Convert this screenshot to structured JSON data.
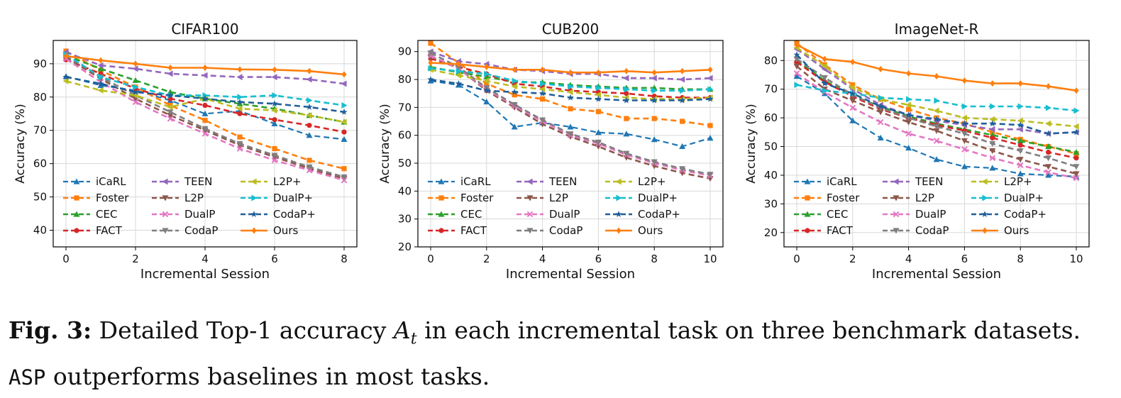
{
  "caption": {
    "label": "Fig. 3:",
    "pre": "Detailed Top-1 accuracy",
    "var": "A",
    "sub": "t",
    "mid": "in each incremental task on three benchmark datasets.",
    "method": "ASP",
    "post": "outperforms baselines in most tasks."
  },
  "series_style": [
    {
      "name": "iCaRL",
      "color": "#1f77b4",
      "marker": "tri-up",
      "dash": "8,5",
      "width": 2.2
    },
    {
      "name": "Foster",
      "color": "#ff7f0e",
      "marker": "square",
      "dash": "8,5",
      "width": 2.6
    },
    {
      "name": "CEC",
      "color": "#2ca02c",
      "marker": "tri-up",
      "dash": "8,5",
      "width": 2.6
    },
    {
      "name": "FACT",
      "color": "#d62728",
      "marker": "circle",
      "dash": "8,5",
      "width": 2.6
    },
    {
      "name": "TEEN",
      "color": "#9467bd",
      "marker": "tri-left",
      "dash": "8,5",
      "width": 2.6
    },
    {
      "name": "L2P",
      "color": "#8c564b",
      "marker": "tri-down",
      "dash": "8,5",
      "width": 2.6
    },
    {
      "name": "DualP",
      "color": "#e377c2",
      "marker": "x",
      "dash": "8,5",
      "width": 2.6
    },
    {
      "name": "CodaP",
      "color": "#7f7f7f",
      "marker": "tri-down",
      "dash": "8,5",
      "width": 2.6
    },
    {
      "name": "L2P+",
      "color": "#bcbd22",
      "marker": "tri-left",
      "dash": "8,5",
      "width": 2.6
    },
    {
      "name": "DualP+",
      "color": "#17becf",
      "marker": "tri-right",
      "dash": "8,5",
      "width": 2.6
    },
    {
      "name": "CodaP+",
      "color": "#1f5f99",
      "marker": "star",
      "dash": "8,5",
      "width": 2.6
    },
    {
      "name": "Ours",
      "color": "#ff7f0e",
      "marker": "diamond",
      "dash": "",
      "width": 2.6
    }
  ],
  "chart_data": [
    {
      "type": "line",
      "title": "CIFAR100",
      "xlabel": "Incremental Session",
      "ylabel": "Accuracy (%)",
      "xlim": [
        0,
        8
      ],
      "ylim": [
        35,
        97
      ],
      "xticks": [
        0,
        2,
        4,
        6,
        8
      ],
      "yticks": [
        40,
        50,
        60,
        70,
        80,
        90
      ],
      "grid": true,
      "legend": "lower-left",
      "x": [
        0,
        1,
        2,
        3,
        4,
        5,
        6,
        7,
        8
      ],
      "series": [
        {
          "name": "iCaRL",
          "values": [
            86.2,
            83.5,
            82.0,
            79.0,
            75.0,
            75.8,
            72.0,
            68.5,
            67.3
          ]
        },
        {
          "name": "Foster",
          "values": [
            93.8,
            88.0,
            83.0,
            77.5,
            73.0,
            68.0,
            64.5,
            61.0,
            58.5
          ]
        },
        {
          "name": "CEC",
          "values": [
            92.5,
            88.5,
            85.0,
            81.5,
            79.5,
            78.0,
            76.5,
            74.5,
            72.5
          ]
        },
        {
          "name": "FACT",
          "values": [
            91.2,
            87.0,
            82.5,
            79.5,
            77.5,
            75.0,
            73.2,
            71.5,
            69.5
          ]
        },
        {
          "name": "TEEN",
          "values": [
            93.5,
            89.5,
            88.5,
            87.0,
            86.5,
            86.0,
            86.0,
            85.3,
            84.0
          ]
        },
        {
          "name": "L2P",
          "values": [
            92.0,
            85.5,
            79.5,
            74.5,
            70.0,
            65.5,
            62.0,
            58.5,
            55.5
          ]
        },
        {
          "name": "DualP",
          "values": [
            91.5,
            84.5,
            78.5,
            73.5,
            69.0,
            64.5,
            61.0,
            58.0,
            55.0
          ]
        },
        {
          "name": "CodaP",
          "values": [
            92.5,
            86.0,
            80.5,
            75.5,
            70.5,
            66.0,
            62.5,
            59.0,
            56.0
          ]
        },
        {
          "name": "L2P+",
          "values": [
            84.8,
            82.0,
            80.5,
            77.0,
            79.5,
            76.5,
            76.0,
            74.5,
            72.5
          ]
        },
        {
          "name": "DualP+",
          "values": [
            92.8,
            86.0,
            83.0,
            80.5,
            80.5,
            80.0,
            80.5,
            79.0,
            77.5
          ]
        },
        {
          "name": "CodaP+",
          "values": [
            86.0,
            84.0,
            81.5,
            80.5,
            79.5,
            78.5,
            78.0,
            77.0,
            75.5
          ]
        },
        {
          "name": "Ours",
          "values": [
            92.3,
            91.0,
            90.0,
            88.8,
            88.8,
            88.3,
            88.2,
            87.8,
            86.8
          ]
        }
      ]
    },
    {
      "type": "line",
      "title": "CUB200",
      "xlabel": "Incremental Session",
      "ylabel": "Accuracy (%)",
      "xlim": [
        0,
        10
      ],
      "ylim": [
        20,
        94
      ],
      "xticks": [
        0,
        2,
        4,
        6,
        8,
        10
      ],
      "yticks": [
        20,
        30,
        40,
        50,
        60,
        70,
        80,
        90
      ],
      "grid": true,
      "legend": "lower-left",
      "x": [
        0,
        1,
        2,
        3,
        4,
        5,
        6,
        7,
        8,
        9,
        10
      ],
      "series": [
        {
          "name": "iCaRL",
          "values": [
            79.5,
            78.0,
            72.0,
            63.0,
            64.5,
            63.0,
            61.0,
            60.5,
            58.5,
            56.0,
            59.0
          ]
        },
        {
          "name": "Foster",
          "values": [
            93.0,
            86.0,
            78.5,
            74.5,
            73.0,
            69.5,
            68.5,
            66.0,
            66.0,
            65.0,
            63.5
          ]
        },
        {
          "name": "CEC",
          "values": [
            84.5,
            82.5,
            81.0,
            79.0,
            79.0,
            78.0,
            77.5,
            77.0,
            77.0,
            76.5,
            76.5
          ]
        },
        {
          "name": "FACT",
          "values": [
            87.5,
            84.5,
            82.0,
            78.5,
            77.5,
            76.0,
            75.5,
            75.0,
            74.0,
            73.5,
            73.5
          ]
        },
        {
          "name": "TEEN",
          "values": [
            90.0,
            86.5,
            85.5,
            83.5,
            83.0,
            82.0,
            82.0,
            80.5,
            80.5,
            80.0,
            80.5
          ]
        },
        {
          "name": "L2P",
          "values": [
            88.0,
            84.0,
            76.0,
            70.0,
            64.0,
            59.5,
            56.0,
            52.0,
            49.0,
            46.5,
            44.5
          ]
        },
        {
          "name": "DualP",
          "values": [
            88.5,
            84.0,
            76.5,
            70.5,
            65.0,
            60.0,
            57.0,
            53.0,
            50.0,
            47.5,
            45.5
          ]
        },
        {
          "name": "CodaP",
          "values": [
            89.5,
            84.5,
            77.0,
            71.0,
            65.5,
            60.5,
            57.5,
            53.5,
            50.5,
            48.0,
            46.0
          ]
        },
        {
          "name": "L2P+",
          "values": [
            83.5,
            81.5,
            79.5,
            77.5,
            76.5,
            75.5,
            74.5,
            73.5,
            73.0,
            73.0,
            73.5
          ]
        },
        {
          "name": "DualP+",
          "values": [
            84.0,
            83.0,
            82.0,
            79.5,
            78.5,
            77.5,
            77.0,
            76.5,
            76.0,
            76.0,
            76.5
          ]
        },
        {
          "name": "CodaP+",
          "values": [
            80.0,
            78.5,
            76.0,
            75.5,
            75.0,
            73.5,
            73.0,
            72.5,
            72.5,
            72.5,
            73.0
          ]
        },
        {
          "name": "Ours",
          "values": [
            86.0,
            85.5,
            84.5,
            83.5,
            83.5,
            82.5,
            82.5,
            83.0,
            82.5,
            83.0,
            83.5
          ]
        }
      ]
    },
    {
      "type": "line",
      "title": "ImageNet-R",
      "xlabel": "Incremental Session",
      "ylabel": "Accuracy (%)",
      "xlim": [
        0,
        10
      ],
      "ylim": [
        15,
        87
      ],
      "xticks": [
        0,
        2,
        4,
        6,
        8,
        10
      ],
      "yticks": [
        20,
        30,
        40,
        50,
        60,
        70,
        80
      ],
      "grid": true,
      "legend": "lower-left",
      "x": [
        0,
        1,
        2,
        3,
        4,
        5,
        6,
        7,
        8,
        9,
        10
      ],
      "series": [
        {
          "name": "iCaRL",
          "values": [
            74.5,
            68.5,
            59.0,
            53.0,
            49.5,
            45.5,
            43.0,
            42.5,
            40.5,
            40.0,
            39.5
          ]
        },
        {
          "name": "Foster",
          "values": [
            86.0,
            78.5,
            71.5,
            66.5,
            63.0,
            60.0,
            58.0,
            55.0,
            52.5,
            50.0,
            47.5
          ]
        },
        {
          "name": "CEC",
          "values": [
            80.0,
            73.0,
            67.5,
            64.0,
            60.5,
            58.0,
            56.0,
            54.0,
            52.0,
            50.0,
            48.0
          ]
        },
        {
          "name": "FACT",
          "values": [
            79.5,
            72.5,
            67.5,
            63.0,
            60.0,
            57.5,
            55.5,
            53.0,
            50.5,
            48.0,
            46.0
          ]
        },
        {
          "name": "TEEN",
          "values": [
            84.0,
            77.0,
            70.0,
            64.5,
            61.0,
            59.0,
            57.5,
            56.0,
            56.0,
            54.5,
            55.0
          ]
        },
        {
          "name": "L2P",
          "values": [
            78.0,
            70.0,
            66.0,
            62.0,
            58.5,
            55.5,
            52.0,
            48.5,
            45.5,
            43.0,
            40.5
          ]
        },
        {
          "name": "DualP",
          "values": [
            75.5,
            69.0,
            63.5,
            58.5,
            54.5,
            52.0,
            49.0,
            46.0,
            43.5,
            41.0,
            39.0
          ]
        },
        {
          "name": "CodaP",
          "values": [
            80.5,
            74.0,
            68.0,
            63.5,
            60.0,
            57.0,
            54.5,
            51.0,
            48.5,
            46.0,
            43.0
          ]
        },
        {
          "name": "L2P+",
          "values": [
            84.5,
            78.0,
            70.5,
            66.5,
            64.5,
            62.5,
            60.0,
            59.5,
            59.0,
            58.0,
            57.0
          ]
        },
        {
          "name": "DualP+",
          "values": [
            71.5,
            69.5,
            68.5,
            67.0,
            66.5,
            66.0,
            64.0,
            64.0,
            64.0,
            63.5,
            62.5
          ]
        },
        {
          "name": "CodaP+",
          "values": [
            82.0,
            72.0,
            68.5,
            64.0,
            61.0,
            59.5,
            58.0,
            58.0,
            57.5,
            54.5,
            55.0
          ]
        },
        {
          "name": "Ours",
          "values": [
            85.5,
            80.5,
            79.5,
            77.0,
            75.5,
            74.5,
            73.0,
            72.0,
            72.0,
            71.0,
            69.5
          ]
        }
      ]
    }
  ]
}
